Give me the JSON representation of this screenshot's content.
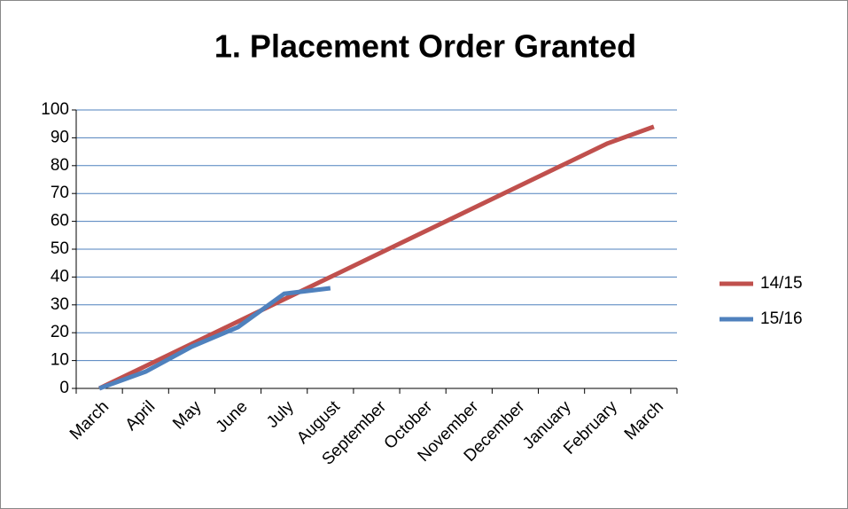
{
  "chart_data": {
    "type": "line",
    "title": "1. Placement Order Granted",
    "categories": [
      "March",
      "April",
      "May",
      "June",
      "July",
      "August",
      "September",
      "October",
      "November",
      "December",
      "January",
      "February",
      "March"
    ],
    "series": [
      {
        "name": "14/15",
        "color": "#c0504d",
        "values": [
          0,
          8,
          16,
          24,
          32,
          40,
          48,
          56,
          64,
          72,
          80,
          88,
          94
        ]
      },
      {
        "name": "15/16",
        "color": "#4f81bd",
        "values": [
          0,
          6,
          15,
          22,
          34,
          36,
          null,
          null,
          null,
          null,
          null,
          null,
          null
        ]
      }
    ],
    "ylim": [
      0,
      100
    ],
    "yticks": [
      0,
      10,
      20,
      30,
      40,
      50,
      60,
      70,
      80,
      90,
      100
    ],
    "grid": true,
    "legend": "right"
  }
}
